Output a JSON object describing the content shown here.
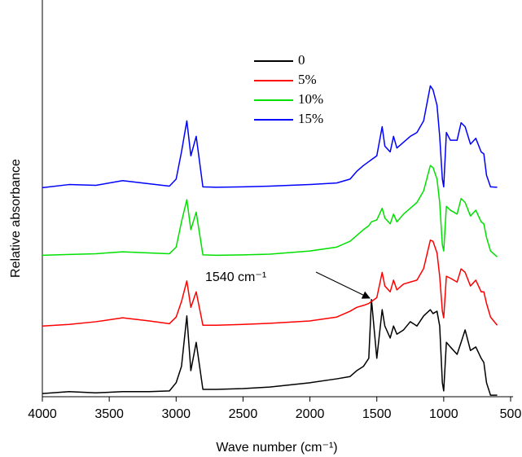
{
  "chart_data": {
    "type": "line",
    "x_label": "Wave number (cm⁻¹)",
    "y_label": "Relative absorbance",
    "annotation": "1540 cm⁻¹",
    "xlim": [
      4000,
      500
    ],
    "ylim": [
      0,
      100
    ],
    "xticks": [
      4000,
      3500,
      3000,
      2500,
      2000,
      1500,
      1000,
      500
    ],
    "x": [
      4000,
      3800,
      3600,
      3400,
      3200,
      3050,
      3000,
      2960,
      2920,
      2890,
      2850,
      2800,
      2700,
      2500,
      2300,
      2000,
      1800,
      1700,
      1650,
      1600,
      1560,
      1540,
      1500,
      1460,
      1440,
      1400,
      1375,
      1350,
      1300,
      1250,
      1200,
      1150,
      1100,
      1080,
      1050,
      1030,
      1010,
      1000,
      980,
      950,
      900,
      870,
      840,
      800,
      760,
      720,
      700,
      680,
      650,
      600
    ],
    "series": [
      {
        "name": "0",
        "color": "#000000",
        "values": [
          0.8,
          1.3,
          1,
          1.3,
          1.3,
          1.5,
          3.6,
          7.8,
          20.8,
          6.7,
          14,
          1.9,
          1.9,
          2.1,
          2.5,
          3.6,
          4.6,
          5.2,
          6.7,
          7.8,
          9.9,
          25,
          9.9,
          22.4,
          18.2,
          15.1,
          18.2,
          16.1,
          17.2,
          19.3,
          18.2,
          20.8,
          22.4,
          21.4,
          22,
          18.2,
          3.6,
          1.5,
          14,
          12.8,
          10.9,
          14,
          17.2,
          11.9,
          12.8,
          9.9,
          8.8,
          3.6,
          0.4,
          0.4
        ]
      },
      {
        "name": "5%",
        "color": "#ff0000",
        "values": [
          18.2,
          18.6,
          19.3,
          20.3,
          19.5,
          18.8,
          20.5,
          24.5,
          29.8,
          23,
          27,
          18.4,
          18.4,
          18.6,
          18.9,
          19.5,
          20.5,
          22,
          23,
          23.5,
          24,
          24.5,
          25.5,
          32,
          28.5,
          27,
          30,
          27.5,
          29,
          29.5,
          30,
          33,
          40.3,
          40,
          37,
          31,
          22,
          20.3,
          31,
          30.5,
          29.5,
          32.9,
          32,
          28.5,
          30,
          27,
          27,
          24,
          20.5,
          18.4
        ]
      },
      {
        "name": "10%",
        "color": "#00e000",
        "values": [
          36.4,
          36.6,
          36.8,
          37.3,
          37,
          36.8,
          38.5,
          45,
          50.7,
          43,
          47.5,
          36.5,
          36.4,
          36.5,
          36.7,
          37.5,
          38.5,
          40,
          41.5,
          43,
          44,
          45,
          45.5,
          48.5,
          46,
          44.5,
          47,
          45,
          47,
          48.5,
          50,
          53,
          59.5,
          59,
          56,
          50,
          39,
          37.5,
          49,
          48,
          47,
          51,
          50,
          46.5,
          48,
          45,
          44.5,
          41,
          37.5,
          36
        ]
      },
      {
        "name": "15%",
        "color": "#0000ff",
        "values": [
          53.8,
          54.6,
          54.4,
          55.6,
          54.8,
          54.2,
          56,
          63,
          71,
          62,
          67,
          54,
          53.9,
          54,
          54.2,
          54.6,
          55,
          56,
          58,
          59.5,
          60.5,
          61,
          62,
          69.5,
          64.5,
          63,
          67,
          64,
          65.5,
          67,
          68,
          71,
          80,
          79,
          75,
          67,
          56,
          54,
          68,
          66,
          66,
          70.5,
          69.5,
          65,
          66.5,
          63,
          62.5,
          57,
          54,
          53.9
        ]
      }
    ]
  }
}
